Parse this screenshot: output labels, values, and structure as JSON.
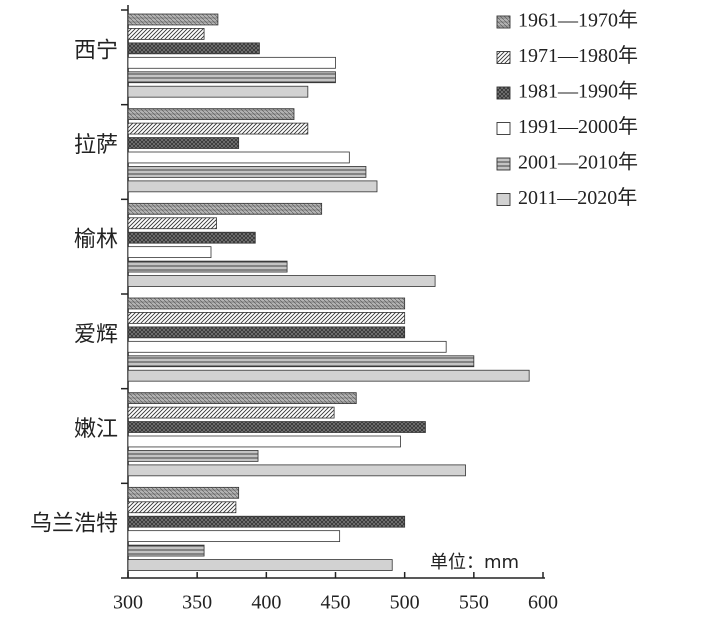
{
  "chart_data": {
    "type": "hbar",
    "unit_label": "单位：mm",
    "categories": [
      "西宁",
      "拉萨",
      "榆林",
      "爱辉",
      "嫩江",
      "乌兰浩特"
    ],
    "series": [
      {
        "name": "1961—1970年",
        "color": "#b4b4b4",
        "pattern": "dots",
        "values": [
          365,
          420,
          440,
          500,
          465,
          380
        ]
      },
      {
        "name": "1971—1980年",
        "color": "#ffffff",
        "pattern": "diagonal",
        "values": [
          355,
          430,
          364,
          500,
          449,
          378
        ]
      },
      {
        "name": "1981—1990年",
        "color": "#7a7a7a",
        "pattern": "crosshatch",
        "values": [
          395,
          380,
          392,
          500,
          515,
          500
        ]
      },
      {
        "name": "1991—2000年",
        "color": "#ffffff",
        "pattern": "none",
        "values": [
          450,
          460,
          360,
          530,
          497,
          453
        ]
      },
      {
        "name": "2001—2010年",
        "color": "#c4c4c4",
        "pattern": "horizontal",
        "values": [
          450,
          472,
          415,
          550,
          394,
          355
        ]
      },
      {
        "name": "2011—2020年",
        "color": "#d2d2d2",
        "pattern": "none",
        "values": [
          430,
          480,
          522,
          590,
          544,
          491
        ]
      }
    ],
    "xlim": [
      300,
      600
    ],
    "xticks": [
      300,
      350,
      400,
      450,
      500,
      550,
      600
    ]
  }
}
